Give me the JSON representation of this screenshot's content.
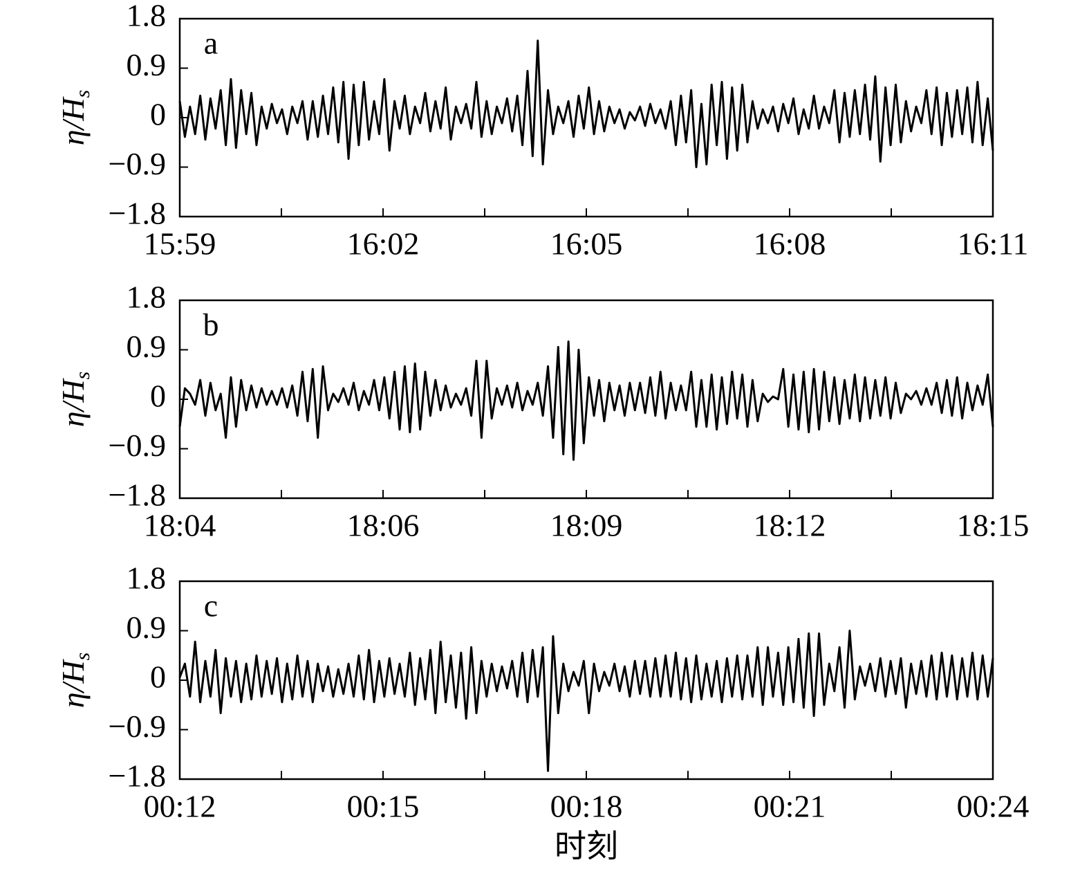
{
  "chart_data": [
    {
      "type": "line",
      "label": "a",
      "ylabel": "η/H",
      "ylabel_subscript": "s",
      "color": "#000000",
      "ylim": [
        -1.8,
        1.8
      ],
      "yticks": [
        1.8,
        0.9,
        0,
        {
          "value": -0.9,
          "label": "−0.9"
        },
        {
          "value": -1.8,
          "label": "−1.8"
        }
      ],
      "xticks": [
        "15:59",
        "16:02",
        "16:05",
        "16:08",
        "16:11"
      ],
      "values": [
        0.3,
        -0.35,
        0.2,
        -0.3,
        0.4,
        -0.4,
        0.35,
        -0.2,
        0.5,
        -0.5,
        0.7,
        -0.55,
        0.5,
        -0.3,
        0.45,
        -0.5,
        0.2,
        -0.2,
        0.25,
        -0.1,
        0.15,
        -0.3,
        0.2,
        -0.1,
        0.3,
        -0.4,
        0.3,
        -0.35,
        0.4,
        -0.3,
        0.55,
        -0.45,
        0.65,
        -0.75,
        0.6,
        -0.5,
        0.65,
        -0.4,
        0.3,
        -0.3,
        0.7,
        -0.6,
        0.3,
        -0.2,
        0.4,
        -0.3,
        0.2,
        -0.1,
        0.45,
        -0.25,
        0.3,
        -0.2,
        0.55,
        -0.4,
        0.2,
        -0.1,
        0.25,
        -0.2,
        0.65,
        -0.35,
        0.3,
        -0.3,
        0.2,
        -0.1,
        0.35,
        -0.25,
        0.4,
        -0.5,
        0.85,
        -0.7,
        1.4,
        -0.85,
        0.5,
        -0.3,
        0.2,
        -0.1,
        0.3,
        -0.35,
        0.4,
        -0.2,
        0.55,
        -0.3,
        0.3,
        -0.25,
        0.2,
        -0.1,
        0.15,
        -0.2,
        0.1,
        -0.05,
        0.2,
        -0.15,
        0.25,
        -0.1,
        0.15,
        -0.2,
        0.3,
        -0.5,
        0.4,
        -0.45,
        0.5,
        -0.9,
        0.25,
        -0.85,
        0.6,
        -0.5,
        0.65,
        -0.75,
        0.55,
        -0.6,
        0.6,
        -0.45,
        0.3,
        -0.2,
        0.15,
        -0.1,
        0.2,
        -0.25,
        0.25,
        -0.1,
        0.35,
        -0.3,
        0.15,
        -0.2,
        0.4,
        -0.2,
        0.2,
        -0.1,
        0.5,
        -0.45,
        0.45,
        -0.35,
        0.5,
        -0.3,
        0.6,
        -0.4,
        0.75,
        -0.8,
        0.55,
        -0.5,
        0.6,
        -0.45,
        0.3,
        -0.25,
        0.2,
        -0.1,
        0.5,
        -0.3,
        0.55,
        -0.5,
        0.45,
        -0.35,
        0.5,
        -0.3,
        0.55,
        -0.45,
        0.65,
        -0.5,
        0.35,
        -0.6
      ]
    },
    {
      "type": "line",
      "label": "b",
      "ylabel": "η/H",
      "ylabel_subscript": "s",
      "color": "#000000",
      "ylim": [
        -1.8,
        1.8
      ],
      "yticks": [
        1.8,
        0.9,
        0,
        {
          "value": -0.9,
          "label": "−0.9"
        },
        {
          "value": -1.8,
          "label": "−1.8"
        }
      ],
      "xticks": [
        "18:04",
        "18:06",
        "18:09",
        "18:12",
        "18:15"
      ],
      "values": [
        -0.5,
        0.2,
        0.1,
        -0.1,
        0.35,
        -0.3,
        0.3,
        -0.2,
        0.1,
        -0.7,
        0.4,
        -0.5,
        0.35,
        -0.2,
        0.25,
        -0.15,
        0.2,
        -0.1,
        0.15,
        -0.1,
        0.2,
        -0.15,
        0.25,
        -0.3,
        0.5,
        -0.4,
        0.55,
        -0.7,
        0.6,
        -0.2,
        0.1,
        -0.05,
        0.2,
        -0.1,
        0.3,
        -0.2,
        0.15,
        -0.1,
        0.35,
        -0.2,
        0.4,
        -0.35,
        0.5,
        -0.55,
        0.6,
        -0.6,
        0.65,
        -0.55,
        0.5,
        -0.3,
        0.35,
        -0.2,
        0.25,
        -0.15,
        0.1,
        -0.1,
        0.2,
        -0.3,
        0.7,
        -0.7,
        0.7,
        -0.35,
        0.2,
        -0.1,
        0.25,
        -0.15,
        0.3,
        -0.2,
        0.15,
        -0.1,
        0.3,
        -0.3,
        0.6,
        -0.7,
        0.95,
        -1.0,
        1.05,
        -1.1,
        0.9,
        -0.8,
        0.4,
        -0.3,
        0.35,
        -0.4,
        0.3,
        -0.2,
        0.25,
        -0.3,
        0.3,
        -0.2,
        0.3,
        -0.25,
        0.4,
        -0.3,
        0.5,
        -0.35,
        0.3,
        -0.2,
        0.25,
        -0.2,
        0.5,
        -0.5,
        0.35,
        -0.5,
        0.45,
        -0.55,
        0.4,
        -0.45,
        0.5,
        -0.35,
        0.45,
        -0.5,
        0.35,
        -0.4,
        0.1,
        -0.05,
        0.05,
        0.0,
        0.55,
        -0.5,
        0.45,
        -0.55,
        0.5,
        -0.6,
        0.55,
        -0.55,
        0.5,
        -0.4,
        0.4,
        -0.45,
        0.35,
        -0.35,
        0.45,
        -0.4,
        0.4,
        -0.35,
        0.35,
        -0.3,
        0.4,
        -0.35,
        0.3,
        -0.25,
        0.1,
        0.0,
        0.15,
        -0.1,
        0.2,
        -0.1,
        0.3,
        -0.25,
        0.35,
        -0.3,
        0.4,
        -0.35,
        0.3,
        -0.2,
        0.25,
        -0.1,
        0.45,
        -0.5
      ]
    },
    {
      "type": "line",
      "label": "c",
      "ylabel": "η/H",
      "ylabel_subscript": "s",
      "color": "#000000",
      "xlabel": "时刻",
      "ylim": [
        -1.8,
        1.8
      ],
      "yticks": [
        1.8,
        0.9,
        0,
        {
          "value": -0.9,
          "label": "−0.9"
        },
        {
          "value": -1.8,
          "label": "−1.8"
        }
      ],
      "xticks": [
        "00:12",
        "00:15",
        "00:18",
        "00:21",
        "00:24"
      ],
      "values": [
        0.05,
        0.3,
        -0.3,
        0.7,
        -0.4,
        0.35,
        -0.3,
        0.55,
        -0.6,
        0.4,
        -0.3,
        0.35,
        -0.4,
        0.3,
        -0.35,
        0.45,
        -0.3,
        0.35,
        -0.25,
        0.4,
        -0.4,
        0.3,
        -0.35,
        0.45,
        -0.3,
        0.35,
        -0.4,
        0.3,
        -0.2,
        0.25,
        -0.3,
        0.2,
        -0.25,
        0.3,
        -0.3,
        0.45,
        -0.35,
        0.55,
        -0.4,
        0.35,
        -0.3,
        0.4,
        -0.25,
        0.3,
        -0.3,
        0.5,
        -0.45,
        0.4,
        -0.35,
        0.55,
        -0.6,
        0.7,
        -0.4,
        0.45,
        -0.5,
        0.5,
        -0.7,
        0.6,
        -0.6,
        0.35,
        -0.3,
        0.3,
        -0.2,
        0.25,
        -0.15,
        0.35,
        -0.3,
        0.5,
        -0.4,
        0.55,
        -0.3,
        0.6,
        -1.65,
        0.8,
        -0.6,
        0.3,
        -0.2,
        0.15,
        -0.1,
        0.35,
        -0.6,
        0.3,
        -0.2,
        0.15,
        -0.1,
        0.3,
        -0.2,
        0.25,
        -0.3,
        0.35,
        -0.25,
        0.35,
        -0.3,
        0.4,
        -0.3,
        0.45,
        -0.3,
        0.5,
        -0.35,
        0.4,
        -0.4,
        0.45,
        -0.35,
        0.3,
        -0.3,
        0.35,
        -0.4,
        0.4,
        -0.3,
        0.45,
        -0.35,
        0.45,
        -0.3,
        0.6,
        -0.45,
        0.6,
        -0.3,
        0.5,
        -0.45,
        0.6,
        -0.4,
        0.75,
        -0.5,
        0.85,
        -0.65,
        0.85,
        -0.45,
        0.3,
        -0.2,
        0.6,
        -0.5,
        0.9,
        -0.35,
        0.25,
        -0.1,
        0.3,
        -0.2,
        0.4,
        -0.3,
        0.35,
        -0.25,
        0.4,
        -0.5,
        0.3,
        -0.25,
        0.35,
        -0.3,
        0.45,
        -0.35,
        0.5,
        -0.3,
        0.45,
        -0.35,
        0.4,
        -0.3,
        0.5,
        -0.35,
        0.45,
        -0.3,
        0.4
      ]
    }
  ]
}
